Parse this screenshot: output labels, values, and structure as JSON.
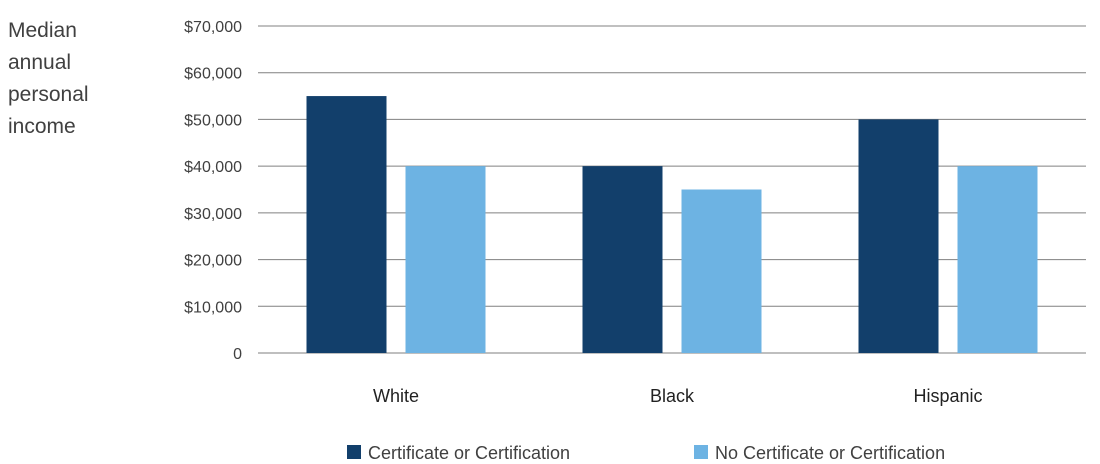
{
  "chart_data": {
    "type": "bar",
    "ylabel": "Median annual personal income",
    "ylabel_lines": [
      "Median",
      "annual",
      "personal",
      "income"
    ],
    "categories": [
      "White",
      "Black",
      "Hispanic"
    ],
    "series": [
      {
        "name": "Certificate or Certification",
        "values": [
          55000,
          40000,
          50000
        ],
        "color": "#123f6b"
      },
      {
        "name": "No Certificate or Certification",
        "values": [
          40000,
          35000,
          40000
        ],
        "color": "#6db3e3"
      }
    ],
    "ylim": [
      0,
      70000
    ],
    "yticks": [
      0,
      10000,
      20000,
      30000,
      40000,
      50000,
      60000,
      70000
    ],
    "ytick_labels": [
      "0",
      "$10,000",
      "$20,000",
      "$30,000",
      "$40,000",
      "$50,000",
      "$60,000",
      "$70,000"
    ],
    "grid": true,
    "legend_position": "bottom"
  }
}
